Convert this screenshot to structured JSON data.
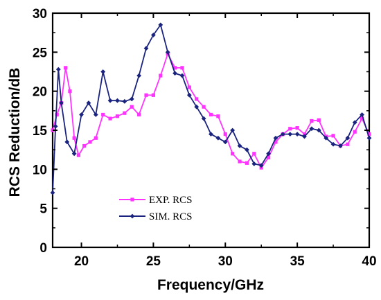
{
  "chart_data": {
    "type": "line",
    "xlabel": "Frequency/GHz",
    "ylabel": "RCS Reduction/dB",
    "xlim": [
      18,
      40
    ],
    "ylim": [
      0,
      30
    ],
    "xticks": [
      20,
      25,
      30,
      35,
      40
    ],
    "yticks": [
      0,
      5,
      10,
      15,
      20,
      25,
      30
    ],
    "legend_position": "lower-center",
    "series": [
      {
        "name": "EXP. RCS",
        "color": "#ff33ff",
        "marker": "square",
        "x": [
          18.0,
          18.3,
          18.6,
          18.9,
          19.2,
          19.5,
          19.8,
          20.2,
          20.6,
          21.0,
          21.5,
          22.0,
          22.5,
          23.0,
          23.5,
          24.0,
          24.5,
          25.0,
          25.5,
          26.0,
          26.5,
          27.0,
          27.5,
          28.0,
          28.5,
          29.0,
          29.5,
          30.0,
          30.5,
          31.0,
          31.5,
          32.0,
          32.5,
          33.0,
          33.5,
          34.0,
          34.5,
          35.0,
          35.5,
          36.0,
          36.5,
          37.0,
          37.5,
          38.0,
          38.5,
          39.0,
          39.5,
          40.0
        ],
        "values": [
          15.0,
          17.0,
          18.5,
          23.0,
          20.0,
          14.0,
          11.8,
          13.0,
          13.5,
          14.0,
          17.0,
          16.5,
          16.8,
          17.2,
          18.0,
          17.0,
          19.5,
          19.5,
          22.0,
          24.8,
          23.0,
          23.0,
          20.5,
          19.0,
          18.0,
          17.0,
          16.8,
          14.5,
          12.0,
          11.0,
          10.8,
          12.0,
          10.2,
          11.5,
          13.5,
          14.5,
          15.2,
          15.3,
          14.5,
          16.2,
          16.3,
          14.2,
          14.3,
          13.0,
          13.2,
          14.8,
          16.5,
          14.5
        ]
      },
      {
        "name": "SIM. RCS",
        "color": "#1a237e",
        "marker": "diamond",
        "x": [
          18.0,
          18.2,
          18.4,
          18.6,
          19.0,
          19.5,
          20.0,
          20.5,
          21.0,
          21.5,
          22.0,
          22.5,
          23.0,
          23.5,
          24.0,
          24.5,
          25.0,
          25.5,
          26.0,
          26.5,
          27.0,
          27.5,
          28.0,
          28.5,
          29.0,
          29.5,
          30.0,
          30.5,
          31.0,
          31.5,
          32.0,
          32.5,
          33.0,
          33.5,
          34.0,
          34.5,
          35.0,
          35.5,
          36.0,
          36.5,
          37.0,
          37.5,
          38.0,
          38.5,
          39.0,
          39.5,
          40.0
        ],
        "values": [
          7.0,
          15.5,
          22.8,
          18.5,
          13.5,
          12.0,
          17.0,
          18.5,
          17.0,
          22.5,
          18.8,
          18.8,
          18.7,
          19.0,
          22.0,
          25.5,
          27.2,
          28.5,
          25.0,
          22.3,
          22.0,
          19.5,
          18.0,
          16.5,
          14.5,
          14.0,
          13.5,
          15.0,
          13.0,
          12.5,
          10.7,
          10.5,
          12.0,
          14.0,
          14.5,
          14.5,
          14.5,
          14.2,
          15.2,
          15.0,
          14.0,
          13.2,
          13.0,
          14.0,
          16.0,
          17.0,
          14.0
        ]
      }
    ]
  }
}
